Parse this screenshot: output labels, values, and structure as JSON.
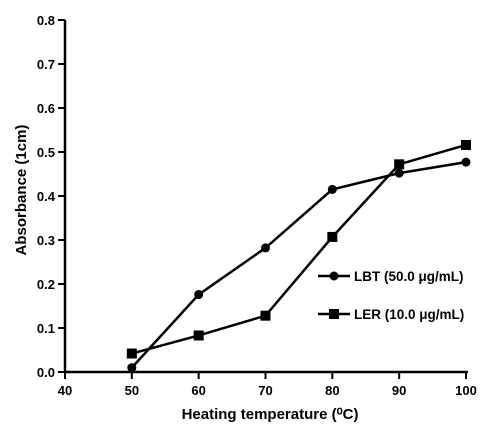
{
  "chart_data": {
    "type": "line",
    "title": "",
    "xlabel": "Heating temperature (⁰C)",
    "ylabel": "Absorbance (1cm)",
    "xlim": [
      40,
      100
    ],
    "ylim": [
      0,
      0.8
    ],
    "x_ticks": [
      40,
      50,
      60,
      70,
      80,
      90,
      100
    ],
    "x_tick_labels": [
      "40",
      "50",
      "60",
      "70",
      "80",
      "90",
      "100"
    ],
    "y_ticks": [
      0,
      0.1,
      0.2,
      0.3,
      0.4,
      0.5,
      0.6,
      0.7,
      0.8
    ],
    "y_tick_labels": [
      "0.0",
      "0.1",
      "0.2",
      "0.3",
      "0.4",
      "0.5",
      "0.6",
      "0.7",
      "0.8"
    ],
    "grid": false,
    "legend_position": "right-middle",
    "series": [
      {
        "name": "LBT (50.0 μg/mL)",
        "marker": "circle",
        "color": "#000000",
        "x": [
          50,
          60,
          70,
          80,
          90,
          100
        ],
        "values": [
          0.01,
          0.176,
          0.282,
          0.415,
          0.452,
          0.477
        ]
      },
      {
        "name": "LER (10.0 μg/mL)",
        "marker": "square",
        "color": "#000000",
        "x": [
          50,
          60,
          70,
          80,
          90,
          100
        ],
        "values": [
          0.042,
          0.083,
          0.128,
          0.307,
          0.472,
          0.516
        ]
      }
    ]
  }
}
